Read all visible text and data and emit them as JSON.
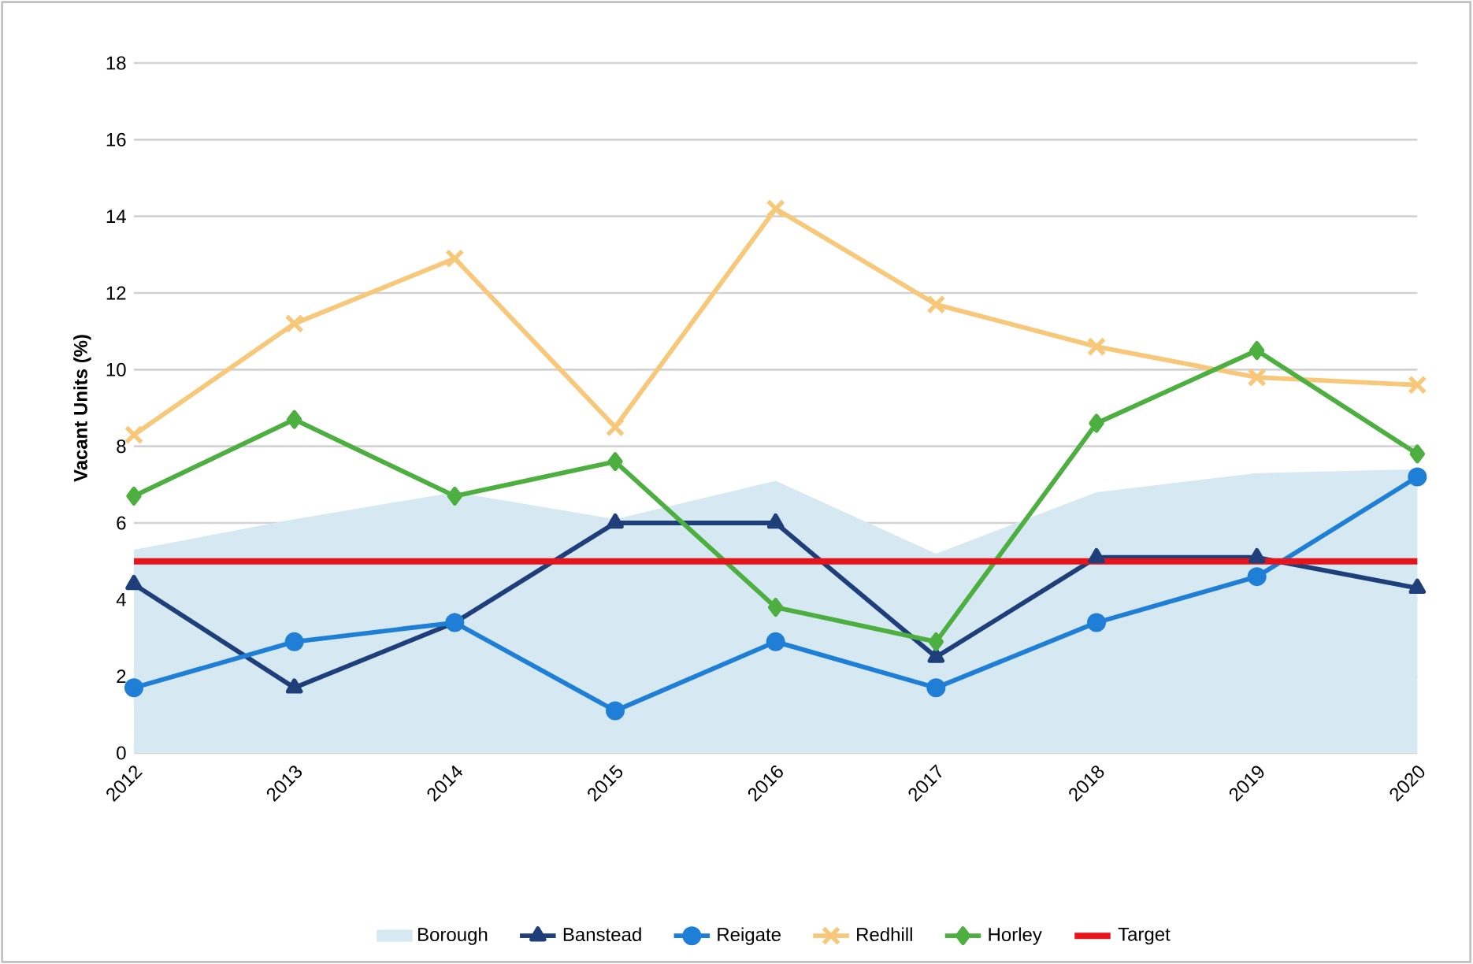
{
  "chart_data": {
    "type": "line",
    "ylabel": "Vacant Units (%)",
    "categories": [
      "2012",
      "2013",
      "2014",
      "2015",
      "2016",
      "2017",
      "2018",
      "2019",
      "2020"
    ],
    "series": [
      {
        "name": "Borough",
        "type": "area",
        "color": "#d6e9f3",
        "values": [
          5.3,
          6.1,
          6.8,
          6.1,
          7.1,
          5.2,
          6.8,
          7.3,
          7.4
        ]
      },
      {
        "name": "Banstead",
        "color": "#1f3f7a",
        "marker": "triangle",
        "values": [
          4.4,
          1.7,
          3.4,
          6.0,
          6.0,
          2.5,
          5.1,
          5.1,
          4.3
        ]
      },
      {
        "name": "Reigate",
        "color": "#1f7fd6",
        "marker": "circle",
        "values": [
          1.7,
          2.9,
          3.4,
          1.1,
          2.9,
          1.7,
          3.4,
          4.6,
          7.2
        ]
      },
      {
        "name": "Redhill",
        "color": "#f7c87a",
        "marker": "cross",
        "values": [
          8.3,
          11.2,
          12.9,
          8.5,
          14.2,
          11.7,
          10.6,
          9.8,
          9.6
        ]
      },
      {
        "name": "Horley",
        "color": "#4caf3f",
        "marker": "diamond",
        "values": [
          6.7,
          8.7,
          6.7,
          7.6,
          3.8,
          2.9,
          8.6,
          10.5,
          7.8
        ]
      }
    ],
    "ref_lines": [
      {
        "axis": "y",
        "value": 5,
        "label": "Target",
        "color": "#e8141b"
      }
    ],
    "ylim": [
      0,
      18
    ],
    "yticks": [
      0,
      2,
      4,
      6,
      8,
      10,
      12,
      14,
      16,
      18
    ],
    "grid": "y",
    "legend": "bottom"
  }
}
